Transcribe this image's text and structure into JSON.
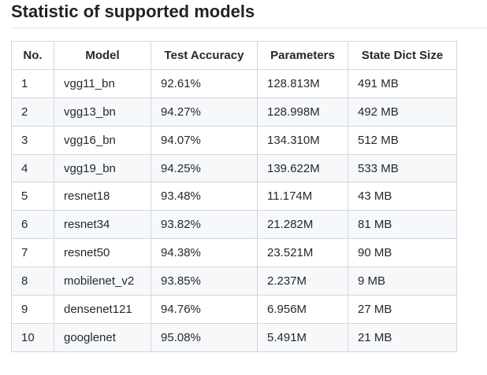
{
  "heading": "Statistic of supported models",
  "table": {
    "columns": [
      "No.",
      "Model",
      "Test Accuracy",
      "Parameters",
      "State Dict Size"
    ],
    "rows": [
      [
        "1",
        "vgg11_bn",
        "92.61%",
        "128.813M",
        "491 MB"
      ],
      [
        "2",
        "vgg13_bn",
        "94.27%",
        "128.998M",
        "492 MB"
      ],
      [
        "3",
        "vgg16_bn",
        "94.07%",
        "134.310M",
        "512 MB"
      ],
      [
        "4",
        "vgg19_bn",
        "94.25%",
        "139.622M",
        "533 MB"
      ],
      [
        "5",
        "resnet18",
        "93.48%",
        "11.174M",
        "43 MB"
      ],
      [
        "6",
        "resnet34",
        "93.82%",
        "21.282M",
        "81 MB"
      ],
      [
        "7",
        "resnet50",
        "94.38%",
        "23.521M",
        "90 MB"
      ],
      [
        "8",
        "mobilenet_v2",
        "93.85%",
        "2.237M",
        "9 MB"
      ],
      [
        "9",
        "densenet121",
        "94.76%",
        "6.956M",
        "27 MB"
      ],
      [
        "10",
        "googlenet",
        "95.08%",
        "5.491M",
        "21 MB"
      ]
    ]
  },
  "colors": {
    "border": "#d0d7de",
    "row_alt": "#f6f8fa",
    "text": "#24292f"
  }
}
